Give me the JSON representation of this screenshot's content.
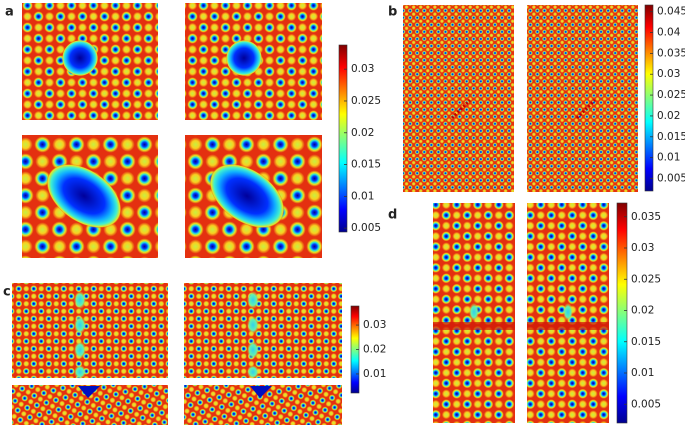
{
  "panels": [
    {
      "label": "a",
      "colorbar": {
        "lim": [
          0.0044,
          0.0338
        ],
        "ticks": [
          0.005,
          0.01,
          0.015,
          0.02,
          0.025,
          0.03
        ]
      }
    },
    {
      "label": "b",
      "colorbar": {
        "lim": [
          0.002,
          0.0466
        ],
        "ticks": [
          0.005,
          0.01,
          0.015,
          0.02,
          0.025,
          0.03,
          0.035,
          0.04,
          0.045
        ]
      }
    },
    {
      "label": "c",
      "colorbar": {
        "lim": [
          0.0022,
          0.0378
        ],
        "ticks": [
          0.01,
          0.02,
          0.03
        ]
      }
    },
    {
      "label": "d",
      "colorbar": {
        "lim": [
          0.002,
          0.0372
        ],
        "ticks": [
          0.005,
          0.01,
          0.015,
          0.02,
          0.025,
          0.03,
          0.035
        ]
      }
    }
  ]
}
